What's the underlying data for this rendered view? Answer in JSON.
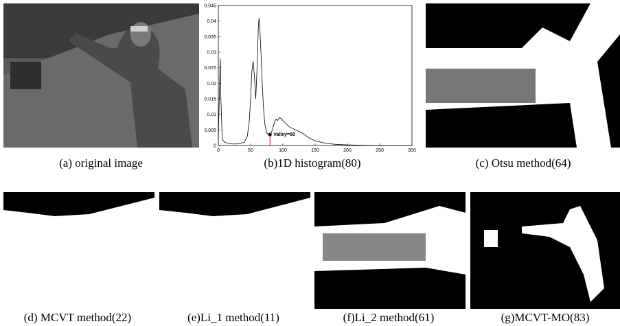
{
  "captions": [
    "(a) original image",
    "(b)1D histogram(80)",
    "(c) Otsu method(64)",
    "(d) MCVT method(22)",
    "(e)Li_1 method(11)",
    "(f)Li_2 method(61)",
    "(g)MCVT-MO(83)"
  ],
  "chart_data": {
    "type": "line",
    "color": "#000000",
    "x": [
      0,
      2,
      3,
      4,
      6,
      10,
      20,
      30,
      40,
      45,
      48,
      50,
      52,
      54,
      56,
      58,
      60,
      62,
      63,
      64,
      66,
      68,
      70,
      72,
      75,
      78,
      80,
      82,
      85,
      88,
      90,
      92,
      95,
      98,
      100,
      105,
      110,
      115,
      120,
      130,
      140,
      150,
      160,
      170,
      180,
      200,
      220,
      250,
      300
    ],
    "values": [
      0.002,
      0.02,
      0.028,
      0.015,
      0.002,
      0.001,
      0.0005,
      0.0005,
      0.001,
      0.003,
      0.008,
      0.015,
      0.024,
      0.027,
      0.022,
      0.015,
      0.025,
      0.038,
      0.041,
      0.039,
      0.03,
      0.02,
      0.012,
      0.007,
      0.004,
      0.0035,
      0.0035,
      0.004,
      0.006,
      0.008,
      0.0085,
      0.008,
      0.009,
      0.0085,
      0.008,
      0.007,
      0.006,
      0.0055,
      0.005,
      0.004,
      0.0025,
      0.0015,
      0.001,
      0.0006,
      0.0004,
      0.0002,
      0.0001,
      0,
      0
    ],
    "xlim": [
      0,
      300
    ],
    "xticks": [
      0,
      50,
      100,
      150,
      200,
      250,
      300
    ],
    "ylim": [
      0,
      0.045
    ],
    "yticks": [
      0,
      0.005,
      0.01,
      0.015,
      0.02,
      0.025,
      0.03,
      0.035,
      0.04,
      0.045
    ],
    "marker": {
      "x": 80,
      "value": 0.0035,
      "color": "#ff0000"
    },
    "annotation": "Valley=80"
  }
}
